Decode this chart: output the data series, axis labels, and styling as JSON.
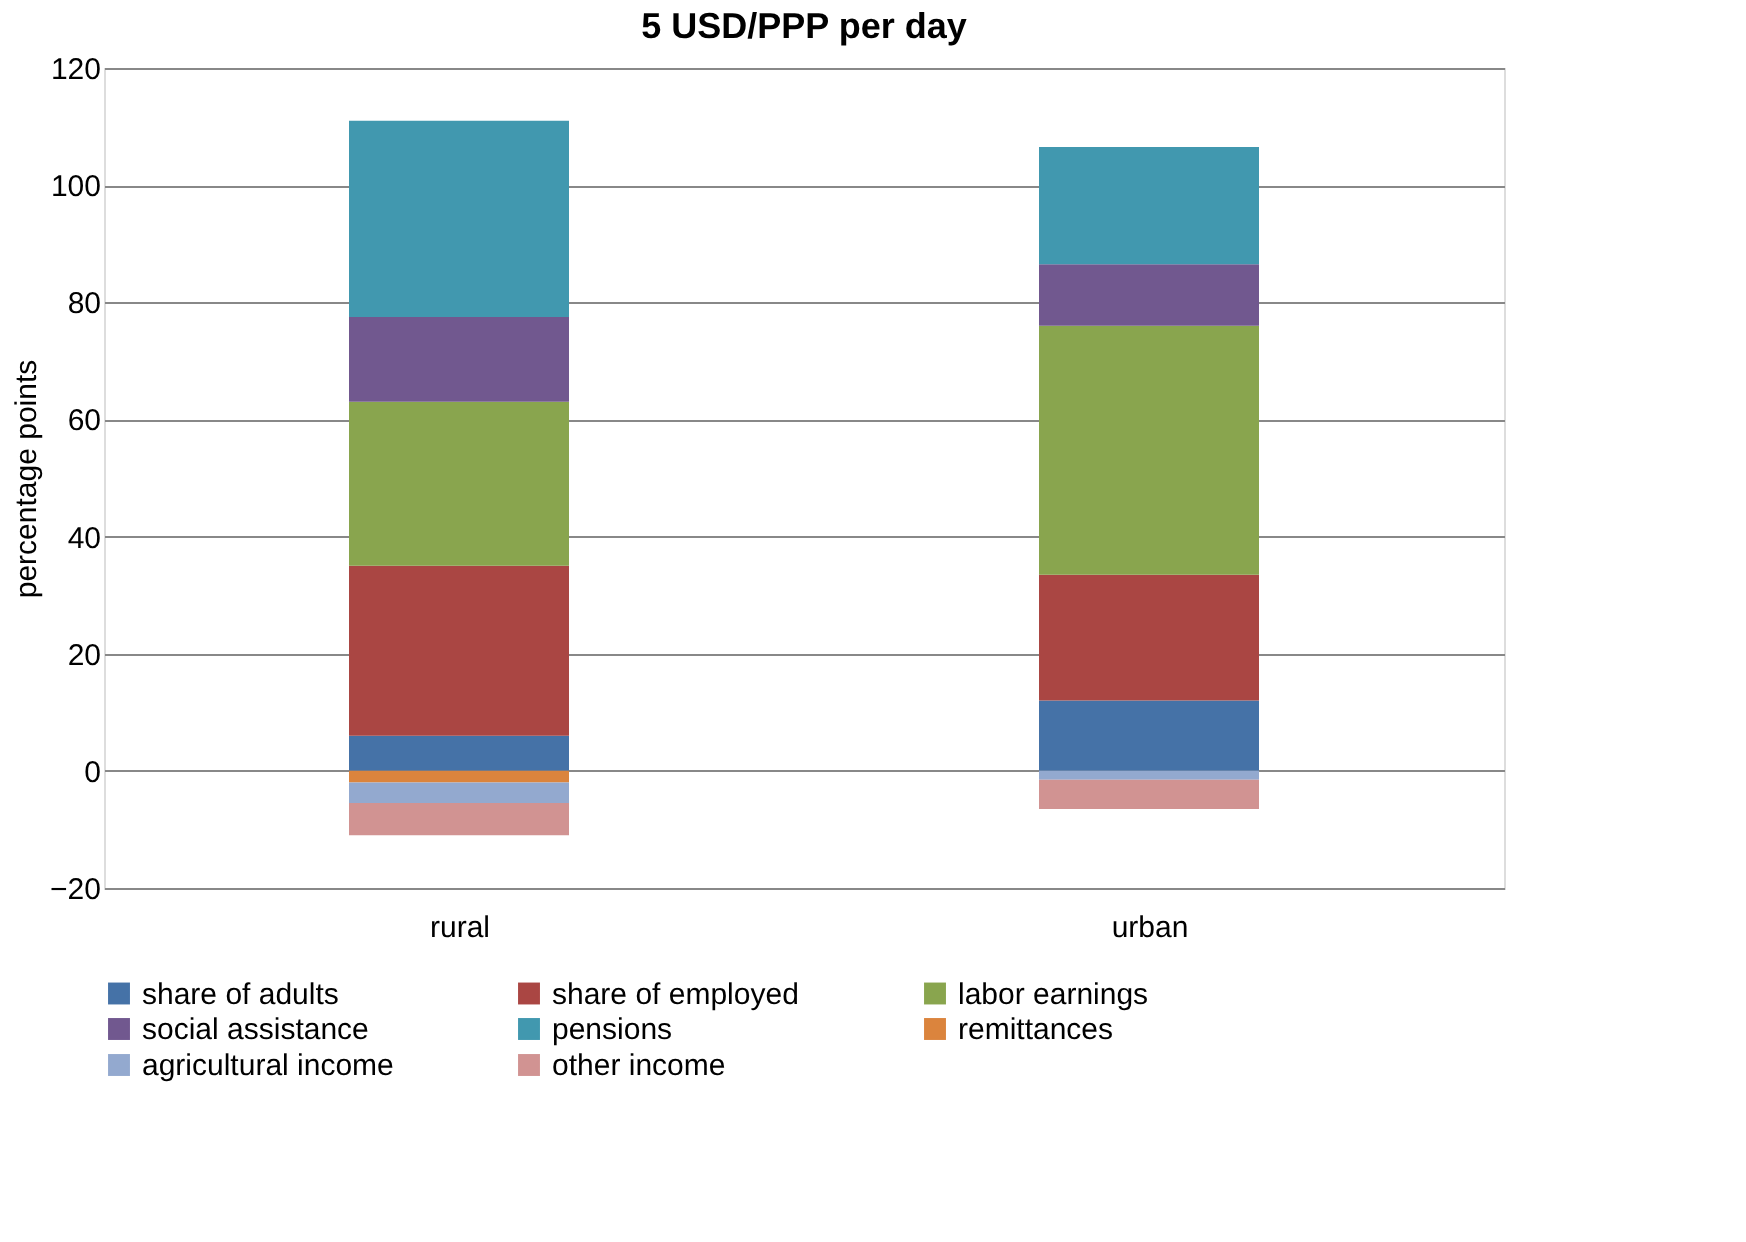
{
  "chart_data": {
    "type": "bar",
    "title": "5 USD/PPP per day",
    "ylabel": "percentage points",
    "categories": [
      "rural",
      "urban"
    ],
    "stacked": true,
    "series": [
      {
        "name": "share of adults",
        "color": "#4572a7",
        "values": [
          6,
          12
        ]
      },
      {
        "name": "share of employed",
        "color": "#aa4643",
        "values": [
          29,
          21.5
        ]
      },
      {
        "name": "labor earnings",
        "color": "#89a54e",
        "values": [
          28,
          42.5
        ]
      },
      {
        "name": "social assistance",
        "color": "#71588f",
        "values": [
          14.5,
          10.5
        ]
      },
      {
        "name": "pensions",
        "color": "#4198af",
        "values": [
          33.5,
          20
        ]
      },
      {
        "name": "remittances",
        "color": "#db843d",
        "values": [
          -2,
          0
        ]
      },
      {
        "name": "agricultural income",
        "color": "#93a9cf",
        "values": [
          -3.5,
          -1.5
        ]
      },
      {
        "name": "other income",
        "color": "#d19392",
        "values": [
          -5.5,
          -5
        ]
      }
    ],
    "ylim": [
      -20,
      120
    ],
    "yticks": [
      -20,
      0,
      20,
      40,
      60,
      80,
      100,
      120
    ],
    "grid": "y",
    "legend": "bottom"
  }
}
